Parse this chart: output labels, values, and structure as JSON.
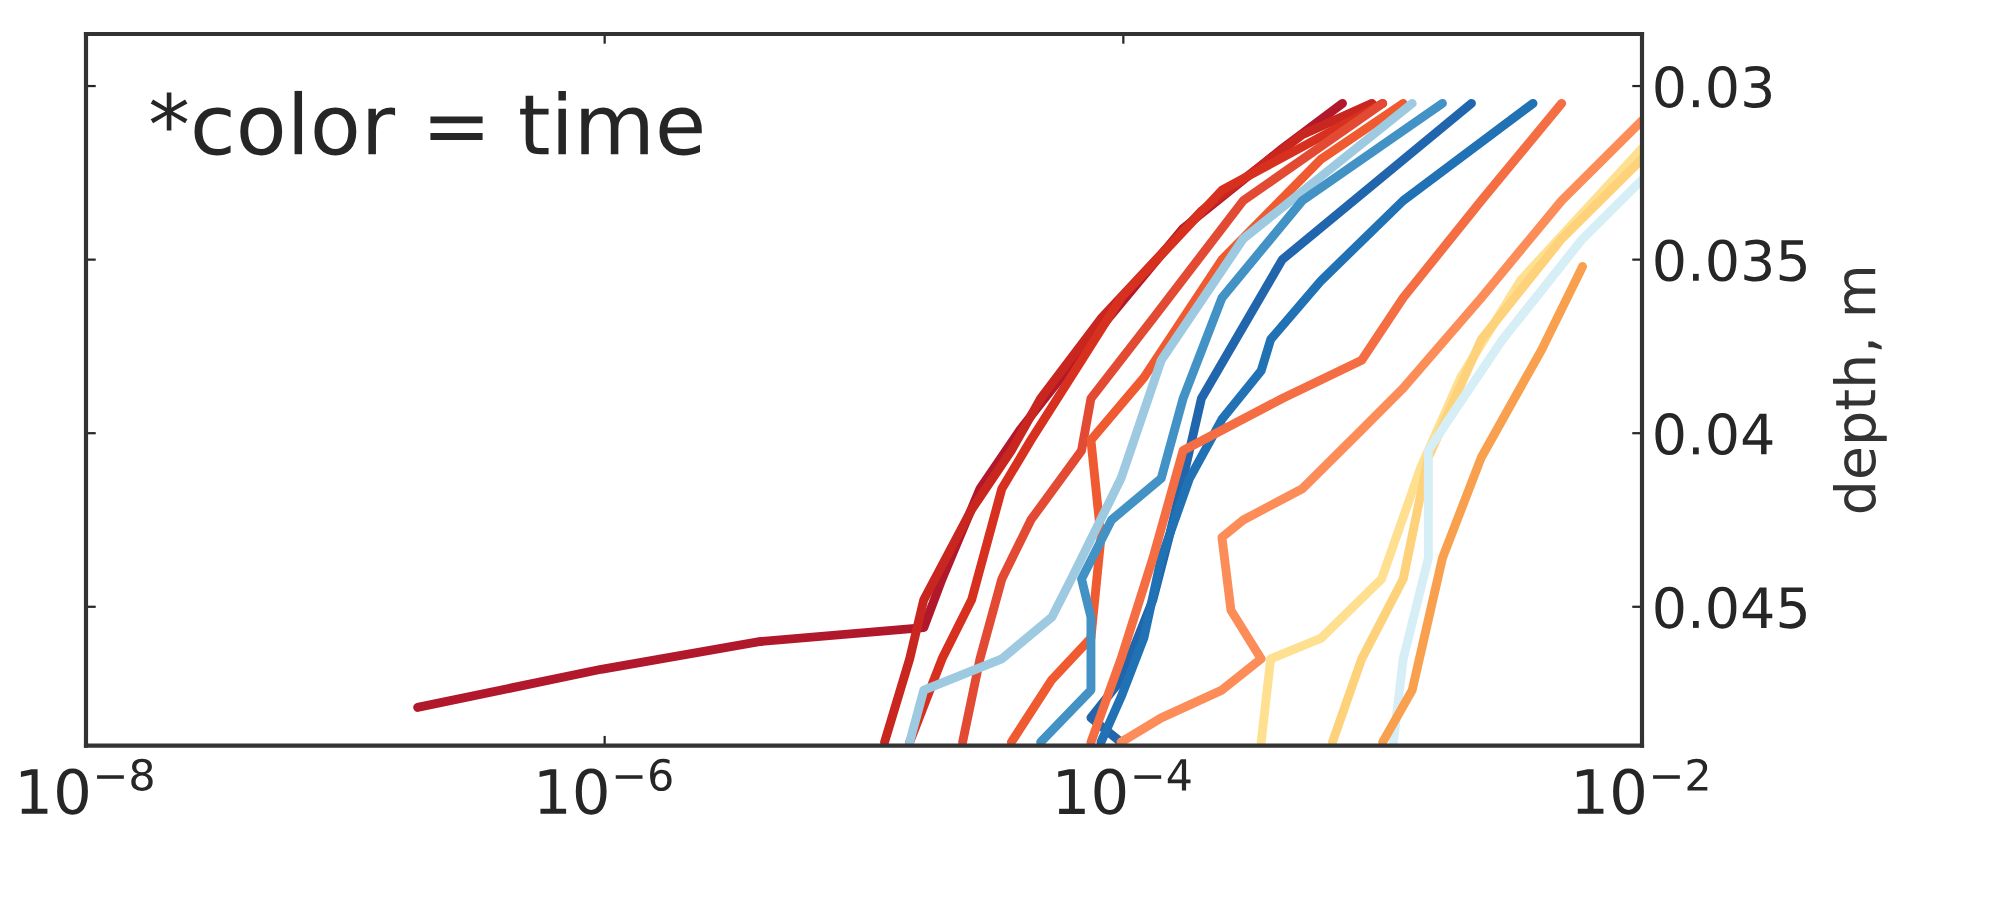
{
  "chart_data": {
    "type": "line",
    "ylabel": "depth, m",
    "log": "x",
    "grid": false,
    "marker": "none",
    "line_style": "solid",
    "annotations": [
      "*color = time"
    ],
    "xlim": [
      1e-08,
      0.01
    ],
    "ylim": [
      0.049,
      0.0285
    ],
    "xticks": [
      {
        "value": 1e-08,
        "label": "10$^{−8}$"
      },
      {
        "value": 1e-06,
        "label": "10$^{−6}$"
      },
      {
        "value": 0.0001,
        "label": "10$^{−4}$"
      },
      {
        "value": 0.01,
        "label": "10$^{−2}$"
      }
    ],
    "yticks": [
      0.03,
      0.035,
      0.04,
      0.045
    ],
    "series": [
      {
        "color": "#b2182b",
        "x": [
          1.9e-07,
          9.7e-07,
          4e-06,
          1.7e-05,
          2e-05,
          2.8e-05,
          4e-05,
          7.5e-05,
          0.00017,
          0.00041,
          0.0007
        ],
        "values": [
          0.0479,
          0.0468,
          0.046,
          0.0456,
          0.0442,
          0.0416,
          0.0399,
          0.0373,
          0.0341,
          0.0318,
          0.0305
        ]
      },
      {
        "color": "#c8261e",
        "x": [
          1.2e-05,
          1.5e-05,
          1.7e-05,
          2.6e-05,
          3.7e-05,
          4.8e-05,
          8.2e-05,
          0.0002,
          0.00049,
          0.00091
        ],
        "values": [
          0.0489,
          0.0465,
          0.0448,
          0.0422,
          0.0405,
          0.039,
          0.0367,
          0.0336,
          0.0314,
          0.0305
        ]
      },
      {
        "color": "#d7301f",
        "x": [
          1.5e-05,
          2e-05,
          2.6e-05,
          3.4e-05,
          4.4e-05,
          6.9e-05,
          9.8e-05,
          0.00024,
          0.001
        ],
        "values": [
          0.0489,
          0.0465,
          0.0448,
          0.0416,
          0.0402,
          0.0379,
          0.0361,
          0.033,
          0.0305
        ]
      },
      {
        "color": "#e34a33",
        "x": [
          2.4e-05,
          2.8e-05,
          3.4e-05,
          4.4e-05,
          6.9e-05,
          7.5e-05,
          0.00013,
          0.00029,
          0.001
        ],
        "values": [
          0.0489,
          0.0465,
          0.0442,
          0.0425,
          0.0405,
          0.039,
          0.0367,
          0.0333,
          0.0305
        ]
      },
      {
        "color": "#ef5a30",
        "x": [
          3.7e-05,
          5.3e-05,
          7.5e-05,
          8.2e-05,
          7.5e-05,
          0.00012,
          0.00024,
          0.00058,
          0.0012
        ],
        "values": [
          0.0489,
          0.0471,
          0.0459,
          0.043,
          0.0402,
          0.0384,
          0.035,
          0.0321,
          0.0305
        ]
      },
      {
        "color": "#9ecae1",
        "x": [
          1.5e-05,
          1.7e-05,
          3.4e-05,
          5.3e-05,
          6.3e-05,
          9.8e-05,
          0.00014,
          0.00029,
          0.0013
        ],
        "values": [
          0.0489,
          0.0474,
          0.0465,
          0.0453,
          0.0442,
          0.0413,
          0.0379,
          0.0344,
          0.0305
        ]
      },
      {
        "color": "#4292c6",
        "x": [
          4.8e-05,
          7.5e-05,
          7.5e-05,
          6.9e-05,
          9e-05,
          0.00014,
          0.00017,
          0.00024,
          0.00049,
          0.0017
        ],
        "values": [
          0.0489,
          0.0474,
          0.0453,
          0.0442,
          0.0425,
          0.0413,
          0.039,
          0.0361,
          0.0333,
          0.0305
        ]
      },
      {
        "color": "#2166ac",
        "x": [
          9.8e-05,
          7.5e-05,
          9.8e-05,
          0.00013,
          0.00015,
          0.00017,
          0.0002,
          0.00041,
          0.0022
        ],
        "values": [
          0.0489,
          0.0482,
          0.0471,
          0.0448,
          0.043,
          0.0413,
          0.039,
          0.035,
          0.0305
        ]
      },
      {
        "color": "#2171b5",
        "x": [
          8.2e-05,
          9.8e-05,
          0.00012,
          0.00014,
          0.00018,
          0.00024,
          0.00034,
          0.00037,
          0.00058,
          0.0012,
          0.0038
        ],
        "values": [
          0.0489,
          0.0476,
          0.0459,
          0.0436,
          0.0413,
          0.0396,
          0.0382,
          0.0373,
          0.0356,
          0.0333,
          0.0305
        ]
      },
      {
        "color": "#f46d43",
        "x": [
          7.5e-05,
          9.8e-05,
          0.00013,
          0.00017,
          0.00041,
          0.00083,
          0.0012,
          0.0024,
          0.0049
        ],
        "values": [
          0.0489,
          0.0465,
          0.0436,
          0.0405,
          0.039,
          0.0379,
          0.0361,
          0.0333,
          0.0305
        ]
      },
      {
        "color": "#fc8d59",
        "x": [
          9.8e-05,
          0.00014,
          0.00024,
          0.00034,
          0.00026,
          0.00024,
          0.00029,
          0.00049,
          0.00083,
          0.0012,
          0.0024,
          0.0049,
          0.01
        ],
        "values": [
          0.0489,
          0.0482,
          0.0474,
          0.0465,
          0.0451,
          0.043,
          0.0425,
          0.0416,
          0.0399,
          0.0387,
          0.0361,
          0.0333,
          0.031
        ]
      },
      {
        "color": "#fee090",
        "x": [
          0.00034,
          0.00037,
          0.00058,
          0.00099,
          0.0014,
          0.002,
          0.0034,
          0.01
        ],
        "values": [
          0.0489,
          0.0465,
          0.0459,
          0.0442,
          0.041,
          0.0384,
          0.0356,
          0.0318
        ]
      },
      {
        "color": "#fdd27a",
        "x": [
          0.00064,
          0.00083,
          0.0012,
          0.0015,
          0.0024,
          0.0049,
          0.01
        ],
        "values": [
          0.0489,
          0.0465,
          0.0442,
          0.0407,
          0.0373,
          0.0344,
          0.0321
        ]
      },
      {
        "color": "#d6eef5",
        "x": [
          0.0011,
          0.0012,
          0.0015,
          0.0015,
          0.0018,
          0.0029,
          0.0059,
          0.01
        ],
        "values": [
          0.0489,
          0.0465,
          0.0436,
          0.0405,
          0.0396,
          0.0373,
          0.0344,
          0.0327
        ]
      },
      {
        "color": "#f9a04f",
        "x": [
          0.001,
          0.0013,
          0.0017,
          0.0024,
          0.0041,
          0.0059
        ],
        "values": [
          0.0489,
          0.0474,
          0.0436,
          0.0407,
          0.0376,
          0.0352
        ]
      }
    ]
  }
}
